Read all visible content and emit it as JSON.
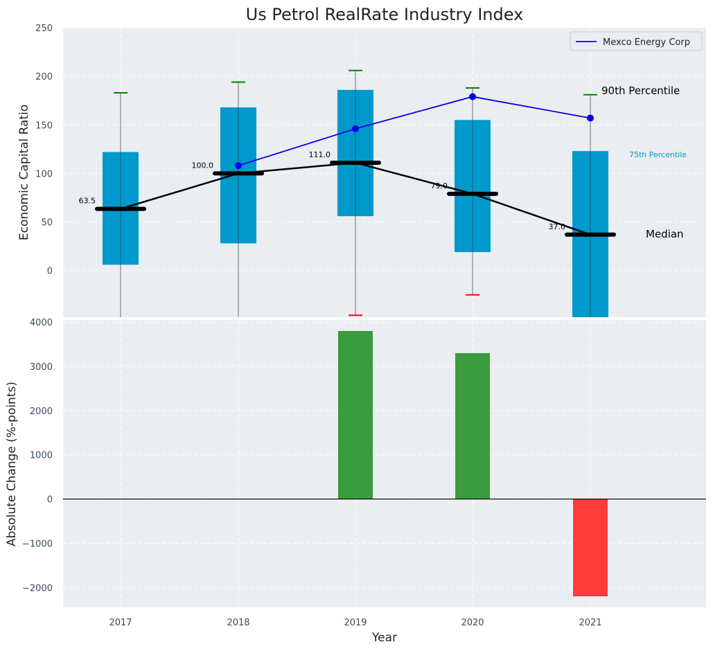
{
  "colors": {
    "box": "#0099cc",
    "median": "#000000",
    "company_line": "#0000ee",
    "whisker_cap_up": "#008000",
    "whisker_cap_down": "#ff0000",
    "bar_pos": "#3a9a3e",
    "bar_neg": "#ff3b3b",
    "panel_bg": "#eaeef0",
    "p75_label": "#0099cc"
  },
  "chart_data": [
    {
      "type": "box",
      "title": "Us Petrol RealRate Industry Index",
      "ylabel": "Economic Capital Ratio",
      "ylim": [
        -48,
        250
      ],
      "yticks": [
        0,
        50,
        100,
        150,
        200,
        250
      ],
      "categories": [
        "2017",
        "2018",
        "2019",
        "2020",
        "2021"
      ],
      "boxes": [
        {
          "year": "2017",
          "p25": 6,
          "median": 63.5,
          "p75": 122,
          "p90": 183,
          "p10": -48
        },
        {
          "year": "2018",
          "p25": 28,
          "median": 100,
          "p75": 168,
          "p90": 194,
          "p10": -48
        },
        {
          "year": "2019",
          "p25": 56,
          "median": 111,
          "p75": 186,
          "p90": 206,
          "p10": -46
        },
        {
          "year": "2020",
          "p25": 19,
          "median": 79,
          "p75": 155,
          "p90": 188,
          "p10": -25
        },
        {
          "year": "2021",
          "p25": -48,
          "median": 37,
          "p75": 123,
          "p90": 181,
          "p10": -48
        }
      ],
      "median_labels": [
        "63.5",
        "100.0",
        "111.0",
        "79.0",
        "37.0"
      ],
      "series": [
        {
          "name": "Mexco Energy Corp",
          "x": [
            "2018",
            "2019",
            "2020",
            "2021"
          ],
          "values": [
            108,
            146,
            179,
            157
          ]
        }
      ],
      "annotations": [
        "90th Percentile",
        "75th Percentile",
        "Median"
      ],
      "legend": {
        "entries": [
          "Mexco Energy Corp"
        ],
        "placement": "top-right"
      }
    },
    {
      "type": "bar",
      "xlabel": "Year",
      "ylabel": "Absolute Change (%-points)",
      "ylim": [
        -2450,
        4050
      ],
      "yticks": [
        -2000,
        -1000,
        0,
        1000,
        2000,
        3000,
        4000
      ],
      "ytick_labels": [
        "−2000",
        "−1000",
        "0",
        "1000",
        "2000",
        "3000",
        "4000"
      ],
      "categories": [
        "2017",
        "2018",
        "2019",
        "2020",
        "2021"
      ],
      "values": [
        0,
        0,
        3800,
        3300,
        -2200
      ]
    }
  ]
}
